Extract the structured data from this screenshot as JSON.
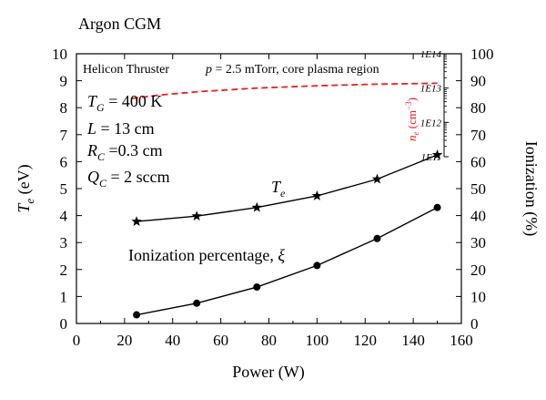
{
  "title": "Argon CGM",
  "annotations": {
    "device": "Helicon Thruster",
    "pressure_var": "p",
    "pressure_rest": " = 2.5 mTorr, core plasma region",
    "params": [
      {
        "sym": "T",
        "sub": "G",
        "rest": " = 400 K"
      },
      {
        "sym": "L",
        "sub": "",
        "rest": " = 13 cm"
      },
      {
        "sym": "R",
        "sub": "C",
        "rest": " =0.3 cm"
      },
      {
        "sym": "Q",
        "sub": "C",
        "rest": " = 2 sccm"
      }
    ],
    "te_label_sym": "T",
    "te_label_sub": "e",
    "ion_label_text": "Ionization percentage, ",
    "ion_label_sym": "ξ",
    "ne_label_sym": "n",
    "ne_label_sub": "e",
    "ne_label_unit": " (cm",
    "ne_label_exp": "−3",
    "ne_label_close": ")"
  },
  "chart_data": {
    "type": "line",
    "xlabel": "Power (W)",
    "ylabel_left_sym": "T",
    "ylabel_left_sub": "e",
    "ylabel_left_unit": " (eV)",
    "ylabel_right": "Ionization (%)",
    "xlim": [
      0,
      160
    ],
    "ylim_left": [
      0,
      10
    ],
    "ylim_right": [
      0,
      100
    ],
    "x_ticks": [
      0,
      20,
      40,
      60,
      80,
      100,
      120,
      140,
      160
    ],
    "y_left_ticks": [
      0,
      1,
      2,
      3,
      4,
      5,
      6,
      7,
      8,
      9,
      10
    ],
    "y_right_ticks": [
      0,
      10,
      20,
      30,
      40,
      50,
      60,
      70,
      80,
      90,
      100
    ],
    "inner_axis_ticks": [
      "1E11",
      "1E12",
      "1E13",
      "1E14"
    ],
    "inner_axis_exponents": [
      11,
      12,
      13,
      14
    ],
    "grid": false,
    "series": [
      {
        "name": "Te",
        "axis": "left",
        "marker": "star",
        "color": "#000000",
        "x": [
          25,
          50,
          75,
          100,
          125,
          150
        ],
        "y": [
          3.78,
          3.98,
          4.3,
          4.73,
          5.35,
          6.25
        ]
      },
      {
        "name": "Ionization percentage, ξ",
        "axis": "right",
        "marker": "circle",
        "color": "#000000",
        "x": [
          25,
          50,
          75,
          100,
          125,
          150
        ],
        "y": [
          3.2,
          7.5,
          13.5,
          21.5,
          31.5,
          43.0
        ]
      },
      {
        "name": "ne",
        "axis": "inner",
        "marker": "none",
        "style": "dashed",
        "color": "#e8211f",
        "x": [
          23,
          35,
          50,
          75,
          100,
          125,
          150
        ],
        "y": [
          5000000000000.0,
          6300000000000.0,
          7800000000000.0,
          10000000000000.0,
          11700000000000.0,
          13000000000000.0,
          13800000000000.0
        ]
      }
    ]
  }
}
